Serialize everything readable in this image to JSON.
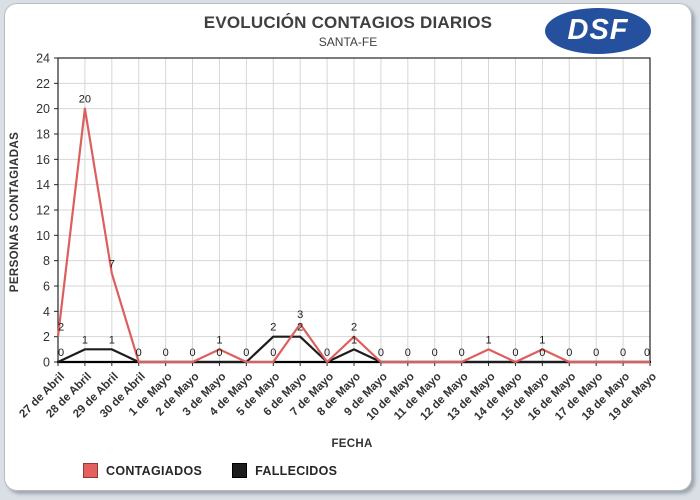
{
  "header": {
    "title": "EVOLUCIÓN CONTAGIOS DIARIOS",
    "subtitle": "SANTA-FE",
    "logo_text": "DSF"
  },
  "chart_data": {
    "type": "line",
    "title": "EVOLUCIÓN CONTAGIOS DIARIOS",
    "subtitle": "SANTA-FE",
    "xlabel": "FECHA",
    "ylabel": "PERSONAS CONTAGIADAS",
    "ylim": [
      0,
      24
    ],
    "ytick_interval": 2,
    "grid": true,
    "legend_position": "bottom-left",
    "categories": [
      "27 de Abril",
      "28 de Abril",
      "29 de Abril",
      "30 de Abril",
      "1 de Mayo",
      "2 de Mayo",
      "3 de Mayo",
      "4 de Mayo",
      "5 de Mayo",
      "6 de Mayo",
      "7 de Mayo",
      "8 de Mayo",
      "9 de Mayo",
      "10 de Mayo",
      "11 de Mayo",
      "12 de Mayo",
      "13 de Mayo",
      "14 de Mayo",
      "15 de Mayo",
      "16 de Mayo",
      "17 de Mayo",
      "18 de Mayo",
      "19 de Mayo"
    ],
    "series": [
      {
        "name": "CONTAGIADOS",
        "color": "#dd5f5d",
        "values": [
          2,
          20,
          7,
          0,
          0,
          0,
          1,
          0,
          0,
          3,
          0,
          2,
          0,
          0,
          0,
          0,
          1,
          0,
          1,
          0,
          0,
          0,
          0
        ],
        "point_labels": [
          "2",
          "20",
          "7",
          "0",
          "0",
          "0",
          "1",
          "0",
          "0",
          "3",
          "0",
          "2",
          "0",
          "0",
          "0",
          "0",
          "1",
          "0",
          "1",
          "0",
          "0",
          "0",
          "0"
        ]
      },
      {
        "name": "FALLECIDOS",
        "color": "#1d1d1d",
        "values": [
          0,
          1,
          1,
          0,
          0,
          0,
          0,
          0,
          2,
          2,
          0,
          1,
          0,
          0,
          0,
          0,
          0,
          0,
          0,
          0,
          0,
          0,
          0
        ],
        "point_labels": [
          "0",
          "1",
          "1",
          "",
          "",
          "",
          "0",
          "",
          "2",
          "2",
          "",
          "1",
          "",
          "",
          "",
          "",
          "",
          "",
          "0",
          "",
          "",
          "",
          ""
        ]
      }
    ]
  },
  "colors": {
    "contagiados_red": "#dd5f5d",
    "fallecidos_black": "#1d1d1d",
    "logo_blue": "#24509e",
    "gridline": "#d6d6d6",
    "axis": "#262626",
    "page_background": "#d9dfe5"
  }
}
